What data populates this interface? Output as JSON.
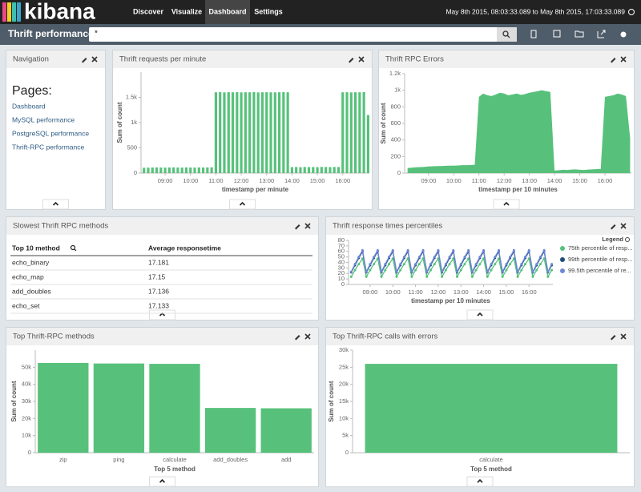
{
  "nav": {
    "logo": "kibana",
    "tabs": [
      "Discover",
      "Visualize",
      "Dashboard",
      "Settings"
    ],
    "active_tab": 2,
    "time_range": "May 8th 2015, 08:03:33.089 to May 8th 2015, 17:03:33.089"
  },
  "dashboard": {
    "title": "Thrift performance",
    "query": "*"
  },
  "panels": [
    {
      "title": "Navigation",
      "heading": "Pages:",
      "links": [
        "Dashboard",
        "MySQL performance",
        "PostgreSQL performance",
        "Thrift-RPC performance"
      ]
    },
    {
      "title": "Thrift requests per minute",
      "chart": {
        "type": "bar",
        "color": "#57c17b",
        "xlabel": "timestamp per minute",
        "ylabel": "Sum of count",
        "x": [
          490,
          500,
          510,
          520,
          530,
          540,
          550,
          560,
          570,
          580,
          590,
          600,
          610,
          620,
          630,
          640,
          650,
          660,
          670,
          680,
          690,
          700,
          710,
          720,
          730,
          740,
          750,
          760,
          770,
          780,
          790,
          800,
          810,
          820,
          830,
          840,
          850,
          860,
          870,
          880,
          890,
          900,
          910,
          920,
          930,
          940,
          950,
          960,
          970,
          980,
          990,
          1000,
          1010,
          1020
        ],
        "values": [
          105,
          108,
          110,
          112,
          110,
          108,
          111,
          113,
          110,
          109,
          112,
          110,
          108,
          111,
          110,
          112,
          115,
          1600,
          1605,
          1598,
          1602,
          1600,
          1603,
          1599,
          1601,
          1600,
          1604,
          1598,
          1600,
          1602,
          1600,
          1599,
          1601,
          1603,
          1600,
          118,
          120,
          117,
          121,
          119,
          120,
          118,
          122,
          120,
          119,
          121,
          120,
          1600,
          1602,
          1598,
          1601,
          1600,
          1603,
          1150
        ],
        "xlim": [
          483,
          1023
        ],
        "xticks": [
          {
            "value": 540,
            "label": "09:00"
          },
          {
            "value": 600,
            "label": "10:00"
          },
          {
            "value": 660,
            "label": "11:00"
          },
          {
            "value": 720,
            "label": "12:00"
          },
          {
            "value": 780,
            "label": "13:00"
          },
          {
            "value": 840,
            "label": "14:00"
          },
          {
            "value": 900,
            "label": "15:00"
          },
          {
            "value": 960,
            "label": "16:00"
          }
        ],
        "ylim": [
          0,
          2000
        ],
        "yticks": [
          0,
          500,
          {
            "value": 1000,
            "label": "1k"
          },
          {
            "value": 1500,
            "label": "1.5k"
          }
        ]
      }
    },
    {
      "title": "Thrift RPC Errors",
      "chart": {
        "type": "area",
        "color": "#57c17b",
        "xlabel": "timestamp per 10 minutes",
        "ylabel": "Sum of count",
        "x": [
          490,
          500,
          510,
          520,
          530,
          540,
          550,
          560,
          570,
          580,
          590,
          600,
          610,
          620,
          630,
          640,
          650,
          660,
          670,
          680,
          690,
          700,
          710,
          720,
          730,
          740,
          750,
          760,
          770,
          780,
          790,
          800,
          810,
          820,
          830,
          840,
          850,
          860,
          870,
          880,
          890,
          900,
          910,
          920,
          930,
          940,
          950,
          960,
          970,
          980,
          990,
          1000,
          1010,
          1020
        ],
        "values": [
          60,
          65,
          70,
          72,
          75,
          80,
          82,
          85,
          85,
          88,
          90,
          90,
          92,
          95,
          95,
          98,
          100,
          920,
          960,
          940,
          930,
          950,
          970,
          960,
          940,
          950,
          960,
          945,
          955,
          970,
          980,
          990,
          1000,
          990,
          980,
          30,
          35,
          40,
          38,
          42,
          45,
          40,
          38,
          42,
          45,
          48,
          50,
          920,
          930,
          940,
          960,
          950,
          930,
          420
        ],
        "xlim": [
          483,
          1023
        ],
        "xticks": [
          {
            "value": 540,
            "label": "09:00"
          },
          {
            "value": 600,
            "label": "10:00"
          },
          {
            "value": 660,
            "label": "11:00"
          },
          {
            "value": 720,
            "label": "12:00"
          },
          {
            "value": 780,
            "label": "13:00"
          },
          {
            "value": 840,
            "label": "14:00"
          },
          {
            "value": 900,
            "label": "15:00"
          },
          {
            "value": 960,
            "label": "16:00"
          }
        ],
        "ylim": [
          0,
          1200
        ],
        "yticks": [
          0,
          200,
          400,
          600,
          800,
          {
            "value": 1000,
            "label": "1k"
          },
          {
            "value": 1200,
            "label": "1.2k"
          }
        ]
      }
    },
    {
      "title": "Slowest Thrift RPC methods",
      "table": {
        "columns": [
          "Top 10 method",
          "Average responsetime"
        ],
        "rows": [
          [
            "echo_binary",
            17.181
          ],
          [
            "echo_map",
            17.15
          ],
          [
            "add_doubles",
            17.136
          ],
          [
            "echo_set",
            17.133
          ]
        ]
      }
    },
    {
      "title": "Thrift response times percentiles",
      "chart": {
        "type": "line",
        "xlabel": "timestamp per 10 minutes",
        "legend_title": "Legend",
        "x": [
          490,
          500,
          510,
          520,
          530,
          540,
          550,
          560,
          570,
          580,
          590,
          600,
          610,
          620,
          630,
          640,
          650,
          660,
          670,
          680,
          690,
          700,
          710,
          720,
          730,
          740,
          750,
          760,
          770,
          780,
          790,
          800,
          810,
          820,
          830,
          840,
          850,
          860,
          870,
          880,
          890,
          900,
          910,
          920,
          930,
          940,
          950,
          960,
          970,
          980,
          990,
          1000,
          1010,
          1020
        ],
        "series": [
          {
            "name": "75th percentile of resp...",
            "color": "#57c17b",
            "values": [
              14,
              26,
              37,
              47,
              14,
              26,
              37,
              47,
              14,
              26,
              37,
              47,
              14,
              26,
              37,
              47,
              14,
              26,
              37,
              47,
              14,
              26,
              37,
              47,
              14,
              26,
              37,
              47,
              14,
              26,
              37,
              47,
              14,
              26,
              37,
              47,
              14,
              26,
              37,
              47,
              14,
              26,
              37,
              47,
              14,
              26,
              37,
              47,
              14,
              26,
              37,
              47,
              14,
              26
            ]
          },
          {
            "name": "99th percentile of resp...",
            "color": "#1f4e79",
            "values": [
              22,
              35,
              48,
              60,
              22,
              35,
              48,
              60,
              22,
              35,
              48,
              60,
              22,
              35,
              48,
              60,
              22,
              35,
              48,
              60,
              22,
              35,
              48,
              60,
              22,
              35,
              48,
              60,
              22,
              35,
              48,
              60,
              22,
              35,
              48,
              60,
              22,
              35,
              48,
              60,
              22,
              35,
              48,
              60,
              22,
              35,
              48,
              60,
              22,
              35,
              48,
              60,
              22,
              35
            ]
          },
          {
            "name": "99.5th percentile of re...",
            "color": "#6f87d8",
            "values": [
              23,
              37,
              50,
              62,
              23,
              37,
              50,
              62,
              23,
              37,
              50,
              62,
              23,
              37,
              50,
              62,
              23,
              37,
              50,
              62,
              23,
              37,
              50,
              62,
              23,
              37,
              50,
              62,
              23,
              37,
              50,
              62,
              23,
              37,
              50,
              62,
              23,
              37,
              50,
              62,
              23,
              37,
              50,
              62,
              23,
              37,
              50,
              62,
              23,
              37,
              50,
              62,
              23,
              37
            ]
          }
        ],
        "xlim": [
          483,
          1023
        ],
        "xticks": [
          {
            "value": 540,
            "label": "09:00"
          },
          {
            "value": 600,
            "label": "10:00"
          },
          {
            "value": 660,
            "label": "11:00"
          },
          {
            "value": 720,
            "label": "12:00"
          },
          {
            "value": 780,
            "label": "13:00"
          },
          {
            "value": 840,
            "label": "14:00"
          },
          {
            "value": 900,
            "label": "15:00"
          },
          {
            "value": 960,
            "label": "16:00"
          }
        ],
        "ylim": [
          0,
          80
        ],
        "yticks": [
          0,
          10,
          20,
          30,
          40,
          50,
          60,
          70,
          80
        ]
      }
    },
    {
      "title": "Top Thrift-RPC methods",
      "chart": {
        "type": "bar",
        "color": "#57c17b",
        "xlabel": "Top 5 method",
        "ylabel": "Sum of count",
        "categories": [
          "zip",
          "ping",
          "calculate",
          "add_doubles",
          "add"
        ],
        "values": [
          52500,
          52200,
          52000,
          26200,
          26000
        ],
        "ylim": [
          0,
          60000
        ],
        "yticks": [
          0,
          {
            "value": 10000,
            "label": "10k"
          },
          {
            "value": 20000,
            "label": "20k"
          },
          {
            "value": 30000,
            "label": "30k"
          },
          {
            "value": 40000,
            "label": "40k"
          },
          {
            "value": 50000,
            "label": "50k"
          }
        ]
      }
    },
    {
      "title": "Top Thrift-RPC calls with errors",
      "chart": {
        "type": "bar",
        "color": "#57c17b",
        "xlabel": "Top 5 method",
        "ylabel": "Sum of count",
        "categories": [
          "calculate"
        ],
        "values": [
          26000
        ],
        "ylim": [
          0,
          30000
        ],
        "yticks": [
          0,
          {
            "value": 5000,
            "label": "5k"
          },
          {
            "value": 10000,
            "label": "10k"
          },
          {
            "value": 15000,
            "label": "15k"
          },
          {
            "value": 20000,
            "label": "20k"
          },
          {
            "value": 25000,
            "label": "25k"
          },
          {
            "value": 30000,
            "label": "30k"
          }
        ]
      }
    }
  ]
}
